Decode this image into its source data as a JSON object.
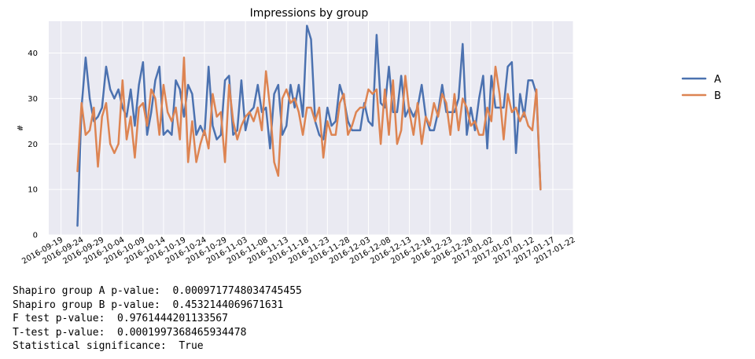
{
  "chart_data": {
    "type": "line",
    "title": "Impressions by group",
    "xlabel": "",
    "ylabel": "#",
    "ylim": [
      0,
      47
    ],
    "yticks": [
      0,
      10,
      20,
      30,
      40
    ],
    "xlim": [
      "2016-09-16",
      "2017-01-22"
    ],
    "xticks": [
      "2016-09-19",
      "2016-09-24",
      "2016-09-29",
      "2016-10-04",
      "2016-10-09",
      "2016-10-14",
      "2016-10-19",
      "2016-10-24",
      "2016-10-29",
      "2016-11-03",
      "2016-11-08",
      "2016-11-13",
      "2016-11-18",
      "2016-11-23",
      "2016-11-28",
      "2016-12-03",
      "2016-12-08",
      "2016-12-13",
      "2016-12-18",
      "2016-12-23",
      "2016-12-28",
      "2017-01-02",
      "2017-01-07",
      "2017-01-12",
      "2017-01-17",
      "2017-01-22"
    ],
    "grid": true,
    "legend_position": "right",
    "x_start": "2016-09-23",
    "x_step_days": 1,
    "series": [
      {
        "name": "A",
        "color": "#4c72b0",
        "values": [
          2,
          28,
          39,
          30,
          25,
          26,
          28,
          37,
          32,
          30,
          32,
          28,
          26,
          32,
          24,
          33,
          38,
          22,
          27,
          34,
          37,
          22,
          23,
          22,
          34,
          32,
          26,
          33,
          31,
          22,
          24,
          22,
          37,
          24,
          21,
          22,
          34,
          35,
          22,
          23,
          34,
          23,
          27,
          28,
          33,
          27,
          28,
          19,
          31,
          33,
          22,
          24,
          33,
          28,
          33,
          26,
          46,
          43,
          25,
          22,
          21,
          28,
          24,
          25,
          33,
          30,
          25,
          23,
          23,
          23,
          29,
          25,
          24,
          44,
          29,
          28,
          37,
          27,
          27,
          35,
          26,
          28,
          26,
          28,
          33,
          26,
          23,
          23,
          27,
          33,
          27,
          27,
          27,
          30,
          42,
          22,
          28,
          23,
          30,
          35,
          19,
          35,
          28,
          28,
          28,
          37,
          38,
          18,
          31,
          26,
          34,
          34,
          31,
          10
        ]
      },
      {
        "name": "B",
        "color": "#dd8452",
        "values": [
          14,
          29,
          22,
          23,
          28,
          15,
          26,
          29,
          20,
          18,
          20,
          34,
          21,
          26,
          17,
          28,
          29,
          24,
          32,
          30,
          22,
          33,
          27,
          25,
          28,
          21,
          39,
          16,
          25,
          16,
          20,
          23,
          19,
          31,
          26,
          27,
          16,
          33,
          25,
          21,
          24,
          26,
          27,
          25,
          28,
          23,
          36,
          28,
          16,
          13,
          30,
          32,
          29,
          30,
          27,
          22,
          28,
          28,
          25,
          28,
          17,
          25,
          22,
          22,
          29,
          31,
          22,
          24,
          27,
          28,
          28,
          32,
          31,
          32,
          20,
          32,
          22,
          34,
          20,
          23,
          35,
          27,
          22,
          29,
          20,
          26,
          24,
          29,
          26,
          31,
          29,
          22,
          31,
          23,
          30,
          28,
          24,
          25,
          22,
          22,
          28,
          25,
          37,
          31,
          21,
          31,
          27,
          28,
          25,
          27,
          24,
          23,
          32,
          10
        ]
      }
    ]
  },
  "output_lines": [
    "Shapiro group A p-value:  0.0009717748034745455",
    "Shapiro group B p-value:  0.4532144069671631",
    "F test p-value:  0.9761444201133567",
    "T-test p-value:  0.0001997368465934478",
    "Statistical significance:  True"
  ]
}
